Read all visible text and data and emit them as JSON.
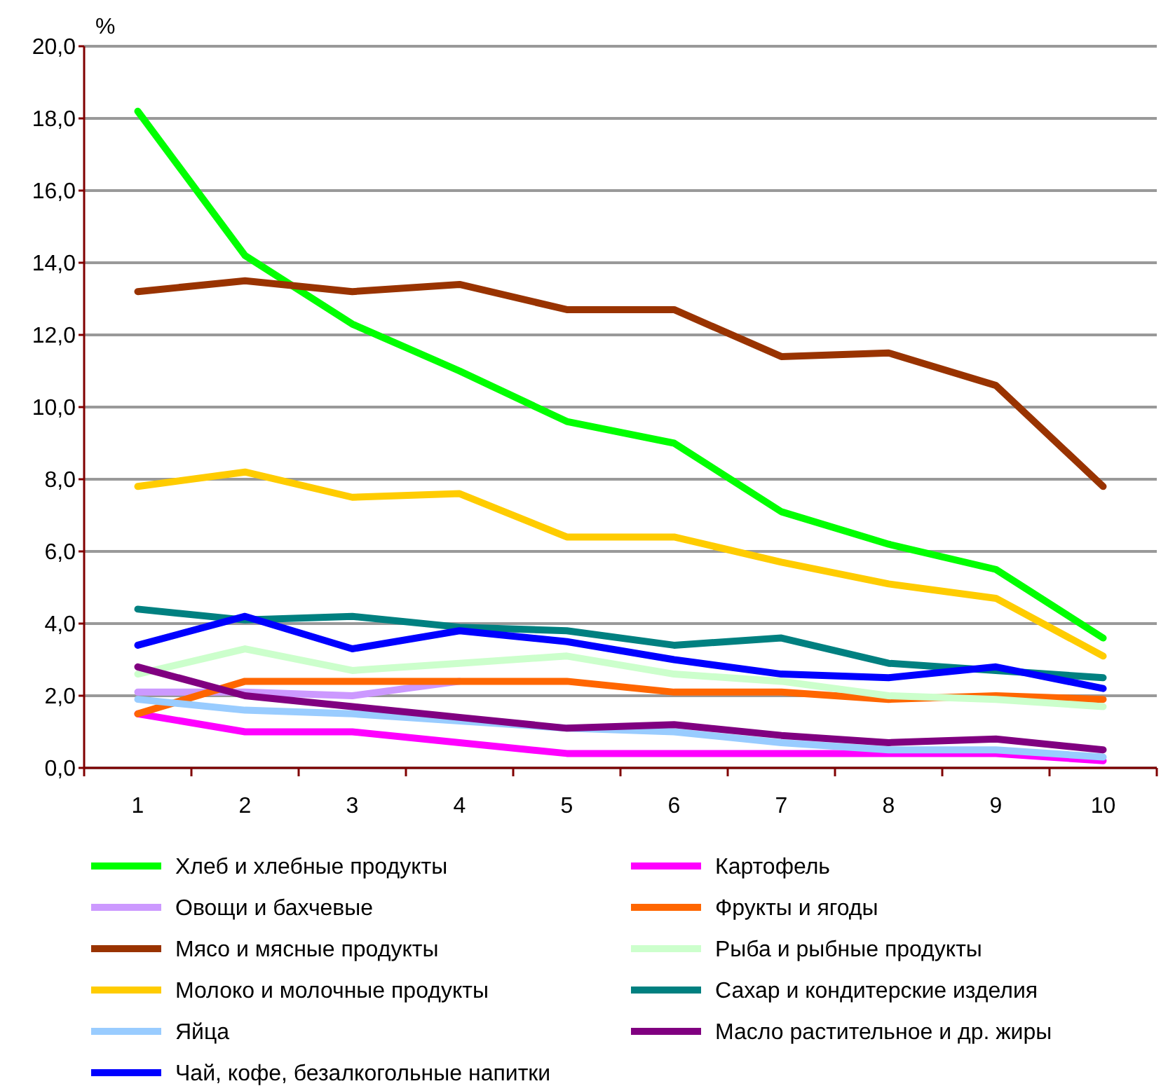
{
  "chart_data": {
    "type": "line",
    "ylabel": "%",
    "categories": [
      "1",
      "2",
      "3",
      "4",
      "5",
      "6",
      "7",
      "8",
      "9",
      "10"
    ],
    "ylim": [
      0,
      20
    ],
    "yticks": [
      {
        "value": 0,
        "label": "0,0"
      },
      {
        "value": 2,
        "label": "2,0"
      },
      {
        "value": 4,
        "label": "4,0"
      },
      {
        "value": 6,
        "label": "6,0"
      },
      {
        "value": 8,
        "label": "8,0"
      },
      {
        "value": 10,
        "label": "10,0"
      },
      {
        "value": 12,
        "label": "12,0"
      },
      {
        "value": 14,
        "label": "14,0"
      },
      {
        "value": 16,
        "label": "16,0"
      },
      {
        "value": 18,
        "label": "18,0"
      },
      {
        "value": 20,
        "label": "20,0"
      }
    ],
    "grid": "y",
    "legend": "bottom",
    "marker": "none",
    "line_style": "solid",
    "series": [
      {
        "name": "Хлеб и хлебные продукты",
        "color": "#00ff00",
        "values": [
          18.2,
          14.2,
          12.3,
          11.0,
          9.6,
          9.0,
          7.1,
          6.2,
          5.5,
          3.6
        ]
      },
      {
        "name": "Картофель",
        "color": "#ff00ff",
        "values": [
          1.5,
          1.0,
          1.0,
          0.7,
          0.4,
          0.4,
          0.4,
          0.4,
          0.4,
          0.2
        ]
      },
      {
        "name": "Овощи и бахчевые",
        "color": "#cc99ff",
        "values": [
          2.1,
          2.1,
          2.0,
          2.4,
          null,
          null,
          null,
          null,
          null,
          null
        ]
      },
      {
        "name": "Фрукты и ягоды",
        "color": "#ff6600",
        "values": [
          1.5,
          2.4,
          2.4,
          2.4,
          2.4,
          2.1,
          2.1,
          1.9,
          2.0,
          1.9
        ]
      },
      {
        "name": "Мясо и мясные продукты",
        "color": "#993300",
        "values": [
          13.2,
          13.5,
          13.2,
          13.4,
          12.7,
          12.7,
          11.4,
          11.5,
          10.6,
          7.8
        ]
      },
      {
        "name": "Рыба и рыбные продукты",
        "color": "#ccffcc",
        "values": [
          2.6,
          3.3,
          2.7,
          2.9,
          3.1,
          2.6,
          2.4,
          2.0,
          1.9,
          1.7
        ]
      },
      {
        "name": "Молоко и молочные продукты",
        "color": "#ffcc00",
        "values": [
          7.8,
          8.2,
          7.5,
          7.6,
          6.4,
          6.4,
          5.7,
          5.1,
          4.7,
          3.1
        ]
      },
      {
        "name": "Сахар и кондитерские изделия",
        "color": "#008080",
        "values": [
          4.4,
          4.1,
          4.2,
          3.9,
          3.8,
          3.4,
          3.6,
          2.9,
          2.7,
          2.5
        ]
      },
      {
        "name": "Яйца",
        "color": "#99ccff",
        "values": [
          1.9,
          1.6,
          1.5,
          1.3,
          1.1,
          1.0,
          0.7,
          0.5,
          0.5,
          0.3
        ]
      },
      {
        "name": "Масло растительное и др. жиры",
        "color": "#800080",
        "values": [
          2.8,
          2.0,
          1.7,
          1.4,
          1.1,
          1.2,
          0.9,
          0.7,
          0.8,
          0.5
        ]
      },
      {
        "name": "Чай, кофе, безалкогольные напитки",
        "color": "#0000ff",
        "values": [
          3.4,
          4.2,
          3.3,
          3.8,
          3.5,
          3.0,
          2.6,
          2.5,
          2.8,
          2.2
        ]
      }
    ]
  }
}
